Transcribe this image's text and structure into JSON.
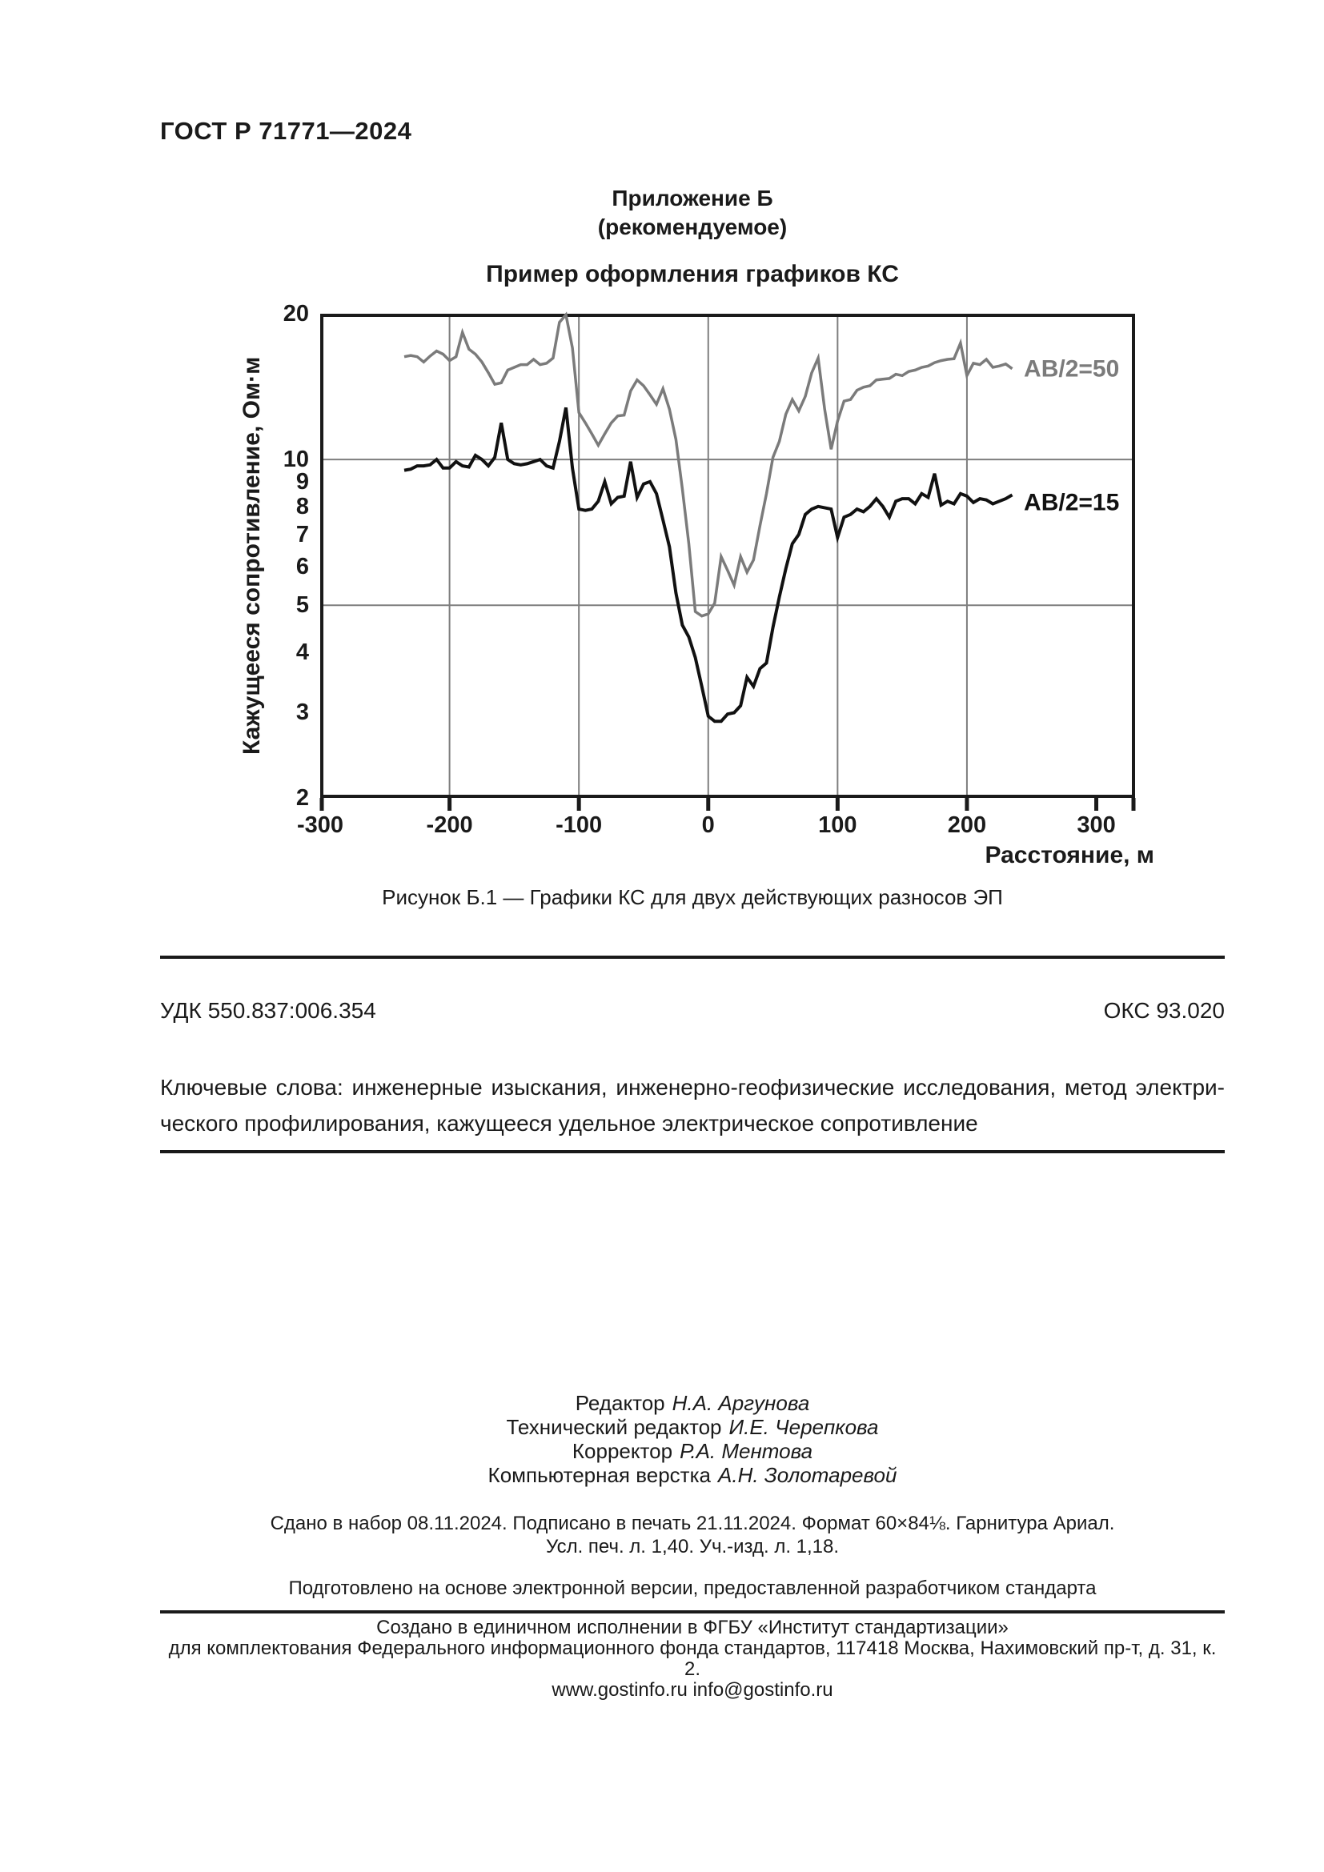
{
  "page": {
    "header": "ГОСТ Р 71771—2024",
    "appendix_title": "Приложение Б",
    "appendix_subtitle": "(рекомендуемое)",
    "section_heading": "Пример оформления графиков КС",
    "figure_caption": "Рисунок Б.1 — Графики КС для двух действующих разносов ЭП",
    "udk": "УДК 550.837:006.354",
    "oks": "ОКС 93.020",
    "keywords_line1": "Ключевые слова:  инженерные изыскания, инженерно-геофизические исследования, метод электри-",
    "keywords_line2": "ческого профилирования, кажущееся удельное электрическое сопротивление"
  },
  "colors": {
    "ink": "#1a1a1a",
    "series_gray": "#7b7b7b",
    "grid": "#7e7e7e"
  },
  "chart_data": {
    "type": "line",
    "title": "",
    "xlabel": "Расстояние, м",
    "ylabel": "Кажущееся сопротивление, Ом·м",
    "y_scale": "log",
    "xlim": [
      -300,
      330
    ],
    "ylim": [
      2,
      20
    ],
    "x_ticks": [
      -300,
      -200,
      -100,
      0,
      100,
      200,
      300
    ],
    "edge_tick_x": 330,
    "y_ticks": [
      20,
      10,
      9,
      8,
      7,
      6,
      5,
      4,
      3,
      2
    ],
    "grid_x": [
      -200,
      -100,
      0,
      100,
      200
    ],
    "grid_y": [
      10,
      5
    ],
    "legend_position": "inside-right",
    "series": [
      {
        "name": "АВ/2=50",
        "color": "#7b7b7b",
        "stroke_width": 3.5,
        "label_at": [
          244,
          15.3
        ],
        "points": [
          [
            -235,
            16.3
          ],
          [
            -230,
            16.4
          ],
          [
            -225,
            16.3
          ],
          [
            -220,
            15.9
          ],
          [
            -215,
            16.35
          ],
          [
            -210,
            16.75
          ],
          [
            -205,
            16.5
          ],
          [
            -200,
            16
          ],
          [
            -195,
            16.3
          ],
          [
            -190,
            18.3
          ],
          [
            -185,
            16.9
          ],
          [
            -180,
            16.5
          ],
          [
            -175,
            15.9
          ],
          [
            -170,
            15.1
          ],
          [
            -165,
            14.3
          ],
          [
            -160,
            14.4
          ],
          [
            -155,
            15.3
          ],
          [
            -150,
            15.5
          ],
          [
            -145,
            15.7
          ],
          [
            -140,
            15.7
          ],
          [
            -135,
            16.1
          ],
          [
            -130,
            15.7
          ],
          [
            -125,
            15.8
          ],
          [
            -120,
            16.2
          ],
          [
            -115,
            19.2
          ],
          [
            -110,
            19.9
          ],
          [
            -105,
            17
          ],
          [
            -100,
            12.5
          ],
          [
            -95,
            11.9
          ],
          [
            -90,
            11.3
          ],
          [
            -85,
            10.7
          ],
          [
            -80,
            11.3
          ],
          [
            -75,
            11.9
          ],
          [
            -70,
            12.3
          ],
          [
            -65,
            12.35
          ],
          [
            -60,
            13.85
          ],
          [
            -55,
            14.6
          ],
          [
            -50,
            14.2
          ],
          [
            -45,
            13.6
          ],
          [
            -40,
            13
          ],
          [
            -35,
            14
          ],
          [
            -30,
            12.7
          ],
          [
            -25,
            11
          ],
          [
            -20,
            8.7
          ],
          [
            -15,
            6.7
          ],
          [
            -10,
            4.85
          ],
          [
            -5,
            4.75
          ],
          [
            0,
            4.8
          ],
          [
            5,
            5.05
          ],
          [
            10,
            6.3
          ],
          [
            15,
            5.9
          ],
          [
            20,
            5.5
          ],
          [
            25,
            6.3
          ],
          [
            30,
            5.85
          ],
          [
            35,
            6.2
          ],
          [
            40,
            7.3
          ],
          [
            45,
            8.5
          ],
          [
            50,
            10.1
          ],
          [
            55,
            10.9
          ],
          [
            60,
            12.4
          ],
          [
            65,
            13.3
          ],
          [
            70,
            12.6
          ],
          [
            75,
            13.5
          ],
          [
            80,
            15.1
          ],
          [
            85,
            16.2
          ],
          [
            90,
            12.7
          ],
          [
            95,
            10.5
          ],
          [
            100,
            12
          ],
          [
            105,
            13.2
          ],
          [
            110,
            13.3
          ],
          [
            115,
            13.9
          ],
          [
            120,
            14.1
          ],
          [
            125,
            14.2
          ],
          [
            130,
            14.6
          ],
          [
            135,
            14.65
          ],
          [
            140,
            14.7
          ],
          [
            145,
            15
          ],
          [
            150,
            14.9
          ],
          [
            155,
            15.2
          ],
          [
            160,
            15.3
          ],
          [
            165,
            15.5
          ],
          [
            170,
            15.6
          ],
          [
            175,
            15.85
          ],
          [
            180,
            16
          ],
          [
            185,
            16.1
          ],
          [
            190,
            16.15
          ],
          [
            195,
            17.4
          ],
          [
            200,
            14.9
          ],
          [
            205,
            15.8
          ],
          [
            210,
            15.7
          ],
          [
            215,
            16.1
          ],
          [
            220,
            15.5
          ],
          [
            225,
            15.6
          ],
          [
            230,
            15.75
          ],
          [
            235,
            15.4
          ]
        ]
      },
      {
        "name": "АВ/2=15",
        "color": "#111111",
        "stroke_width": 4,
        "label_at": [
          244,
          8.1
        ],
        "points": [
          [
            -235,
            9.5
          ],
          [
            -230,
            9.55
          ],
          [
            -225,
            9.7
          ],
          [
            -220,
            9.7
          ],
          [
            -215,
            9.75
          ],
          [
            -210,
            10
          ],
          [
            -205,
            9.6
          ],
          [
            -200,
            9.6
          ],
          [
            -195,
            9.9
          ],
          [
            -190,
            9.7
          ],
          [
            -185,
            9.65
          ],
          [
            -180,
            10.2
          ],
          [
            -175,
            10
          ],
          [
            -170,
            9.7
          ],
          [
            -165,
            10.1
          ],
          [
            -160,
            11.9
          ],
          [
            -155,
            10
          ],
          [
            -150,
            9.8
          ],
          [
            -145,
            9.75
          ],
          [
            -140,
            9.8
          ],
          [
            -135,
            9.9
          ],
          [
            -130,
            10
          ],
          [
            -125,
            9.7
          ],
          [
            -120,
            9.6
          ],
          [
            -115,
            10.9
          ],
          [
            -110,
            12.8
          ],
          [
            -105,
            9.6
          ],
          [
            -100,
            7.9
          ],
          [
            -95,
            7.85
          ],
          [
            -90,
            7.9
          ],
          [
            -85,
            8.2
          ],
          [
            -80,
            9
          ],
          [
            -75,
            8.1
          ],
          [
            -70,
            8.35
          ],
          [
            -65,
            8.4
          ],
          [
            -60,
            9.9
          ],
          [
            -55,
            8.35
          ],
          [
            -50,
            8.9
          ],
          [
            -45,
            9
          ],
          [
            -40,
            8.5
          ],
          [
            -35,
            7.5
          ],
          [
            -30,
            6.6
          ],
          [
            -25,
            5.3
          ],
          [
            -20,
            4.55
          ],
          [
            -15,
            4.3
          ],
          [
            -10,
            3.9
          ],
          [
            -5,
            3.4
          ],
          [
            0,
            2.95
          ],
          [
            5,
            2.88
          ],
          [
            10,
            2.88
          ],
          [
            15,
            2.98
          ],
          [
            20,
            3
          ],
          [
            25,
            3.1
          ],
          [
            30,
            3.55
          ],
          [
            35,
            3.4
          ],
          [
            40,
            3.7
          ],
          [
            45,
            3.8
          ],
          [
            50,
            4.5
          ],
          [
            55,
            5.2
          ],
          [
            60,
            5.95
          ],
          [
            65,
            6.7
          ],
          [
            70,
            7
          ],
          [
            75,
            7.7
          ],
          [
            80,
            7.9
          ],
          [
            85,
            8
          ],
          [
            90,
            7.95
          ],
          [
            95,
            7.9
          ],
          [
            100,
            6.9
          ],
          [
            105,
            7.6
          ],
          [
            110,
            7.7
          ],
          [
            115,
            7.9
          ],
          [
            120,
            7.8
          ],
          [
            125,
            8
          ],
          [
            130,
            8.3
          ],
          [
            135,
            8
          ],
          [
            140,
            7.6
          ],
          [
            145,
            8.2
          ],
          [
            150,
            8.3
          ],
          [
            155,
            8.3
          ],
          [
            160,
            8.1
          ],
          [
            165,
            8.5
          ],
          [
            170,
            8.35
          ],
          [
            175,
            9.35
          ],
          [
            180,
            8.05
          ],
          [
            185,
            8.2
          ],
          [
            190,
            8.1
          ],
          [
            195,
            8.5
          ],
          [
            200,
            8.4
          ],
          [
            205,
            8.15
          ],
          [
            210,
            8.3
          ],
          [
            215,
            8.25
          ],
          [
            220,
            8.1
          ],
          [
            225,
            8.2
          ],
          [
            230,
            8.3
          ],
          [
            235,
            8.45
          ]
        ]
      }
    ]
  },
  "credits": {
    "rows": [
      {
        "role": "Редактор",
        "name": "Н.А. Аргунова"
      },
      {
        "role": "Технический редактор",
        "name": "И.Е. Черепкова"
      },
      {
        "role": "Корректор",
        "name": "Р.А. Ментова"
      },
      {
        "role": "Компьютерная верстка",
        "name": "А.Н. Золотаревой"
      }
    ]
  },
  "colophon": {
    "line1": "Сдано в набор 08.11.2024.   Подписано в печать 21.11.2024.   Формат 60×84⅛.   Гарнитура Ариал.",
    "line2": "Усл. печ. л. 1,40.   Уч.-изд. л. 1,18.",
    "prepared": "Подготовлено на основе электронной версии, предоставленной разработчиком стандарта"
  },
  "footer": {
    "line1": "Создано в единичном исполнении в ФГБУ «Институт стандартизации»",
    "line2": "для комплектования Федерального информационного фонда стандартов, 117418 Москва, Нахимовский пр-т, д. 31, к. 2.",
    "line3": "www.gostinfo.ru   info@gostinfo.ru"
  }
}
